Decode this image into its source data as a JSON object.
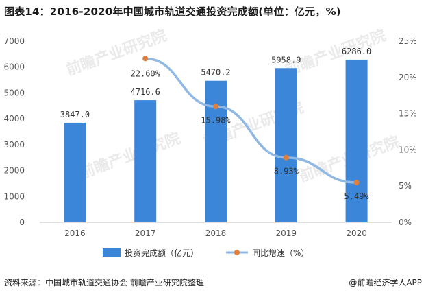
{
  "title": "图表14：2016-2020年中国城市轨道交通投资完成额(单位：亿元，%)",
  "source": "资料来源：中国城市轨道交通协会 前瞻产业研究院整理",
  "brand": "@前瞻经济学人APP",
  "watermark": "前瞻产业研究院",
  "chart_data": {
    "type": "bar",
    "categories": [
      "2016",
      "2017",
      "2018",
      "2019",
      "2020"
    ],
    "series": [
      {
        "name": "投资完成额（亿元）",
        "type": "bar",
        "axis": "left",
        "values": [
          3847.0,
          4716.6,
          5470.2,
          5958.9,
          6286.0
        ],
        "labels": [
          "3847.0",
          "4716.6",
          "5470.2",
          "5958.9",
          "6286.0"
        ],
        "color": "#3b86d8"
      },
      {
        "name": "同比增速（%）",
        "type": "line",
        "axis": "right",
        "values": [
          null,
          22.6,
          15.98,
          8.93,
          5.49
        ],
        "labels": [
          "",
          "22.60%",
          "15.98%",
          "8.93%",
          "5.49%"
        ],
        "color": "#8fb8e3",
        "marker_color": "#e07f3c"
      }
    ],
    "ylim_left": [
      0,
      7000
    ],
    "yticks_left": [
      "0",
      "1000",
      "2000",
      "3000",
      "4000",
      "5000",
      "6000",
      "7000"
    ],
    "ylim_right": [
      0,
      25
    ],
    "yticks_right": [
      "0%",
      "5%",
      "10%",
      "15%",
      "20%",
      "25%"
    ],
    "grid": false,
    "legend": "bottom"
  }
}
